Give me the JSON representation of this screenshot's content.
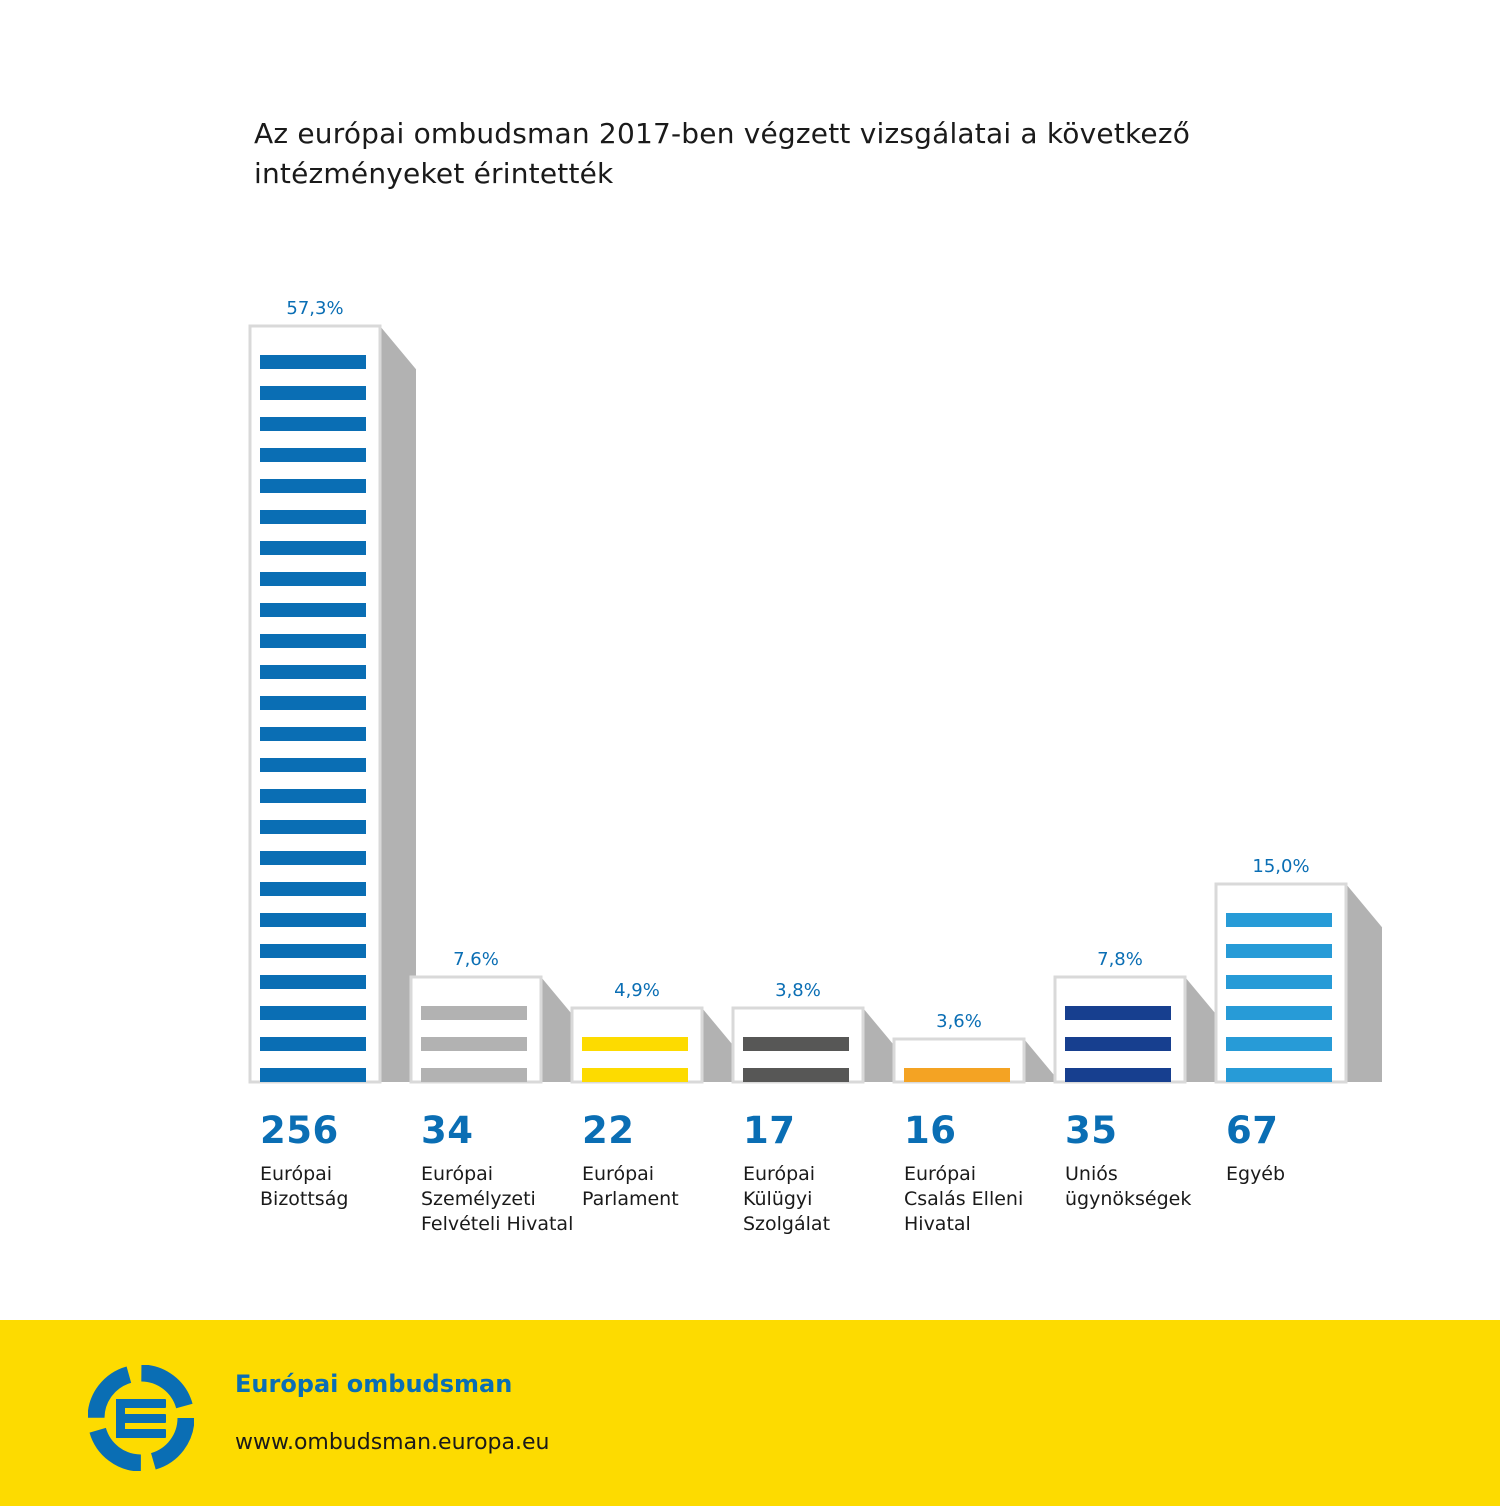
{
  "title": "Az európai ombudsman 2017-ben végzett vizsgálatai a következő intézményeket érintették",
  "colors": {
    "brand_blue": "#0a6eb4",
    "footer_yellow": "#fddb00",
    "shadow_gray": "#b2b2b2",
    "outline_gray": "#d9d9d9",
    "text_dark": "#1a1a1a"
  },
  "chart_data": {
    "type": "bar",
    "categories": [
      "Európai Bizottság",
      "Európai Személyzeti Felvételi Hivatal",
      "Európai Parlament",
      "Európai Külügyi Szolgálat",
      "Európai Csalás Elleni Hivatal",
      "Uniós ügynökségek",
      "Egyéb"
    ],
    "category_lines": [
      "Európai\nBizottság",
      "Európai\nSzemélyzeti\nFelvételi Hivatal",
      "Európai\nParlament",
      "Európai\nKülügyi\nSzolgálat",
      "Európai\nCsalás Elleni\nHivatal",
      "Uniós\nügynökségek",
      "Egyéb"
    ],
    "values": [
      256,
      34,
      22,
      17,
      16,
      35,
      67
    ],
    "percent_labels": [
      "57,3%",
      "7,6%",
      "4,9%",
      "3,8%",
      "3,6%",
      "7,8%",
      "15,0%"
    ],
    "stripe_colors": [
      "#0a6eb4",
      "#b2b2b2",
      "#fddb00",
      "#575756",
      "#f4a323",
      "#173f8f",
      "#279bd7"
    ],
    "title": "Az európai ombudsman 2017-ben végzett vizsgálatai a következő intézményeket érintették",
    "xlabel": "",
    "ylabel": "",
    "grid": false,
    "legend": "none"
  },
  "footer": {
    "org_name": "Európai ombudsman",
    "url": "www.ombudsman.europa.eu",
    "logo_icon": "european-ombudsman-logo-icon"
  }
}
